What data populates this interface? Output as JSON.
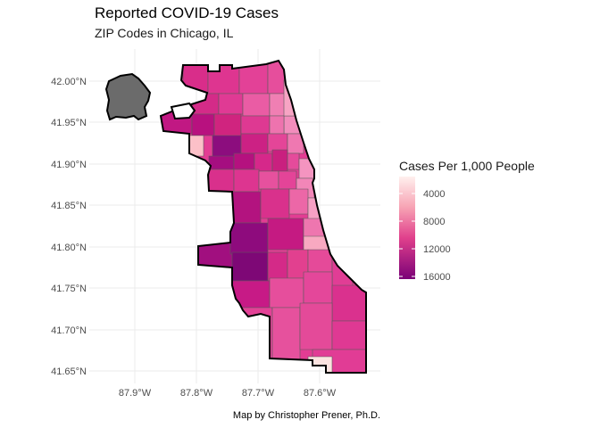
{
  "title": "Reported COVID-19 Cases",
  "subtitle": "ZIP Codes in Chicago, IL",
  "caption": "Map by Christopher Prener, Ph.D.",
  "legend": {
    "title": "Cases Per 1,000 People",
    "breaks": [
      "4000",
      "8000",
      "12000",
      "16000"
    ],
    "low_color": "#fff0ee",
    "high_color": "#7a0177",
    "na_color": "#6b6b6b"
  },
  "axes": {
    "lat_labels": [
      "42.00°N",
      "41.95°N",
      "41.90°N",
      "41.85°N",
      "41.80°N",
      "41.75°N",
      "41.70°N",
      "41.65°N"
    ],
    "lon_labels": [
      "87.9°W",
      "87.8°W",
      "87.7°W",
      "87.6°W"
    ]
  },
  "chart_data": {
    "type": "choropleth",
    "title": "Reported COVID-19 Cases",
    "subtitle": "ZIP Codes in Chicago, IL",
    "fill_variable": "Cases Per 1,000 People",
    "scale_range": [
      2000,
      17000
    ],
    "lat_range": [
      41.63,
      42.04
    ],
    "lon_range": [
      -87.96,
      -87.51
    ],
    "regions_approx_values": [
      10500,
      10000,
      9500,
      11000,
      9000,
      9500,
      8500,
      7500,
      7000,
      6500,
      13000,
      14500,
      16500,
      4000,
      11500,
      10000,
      9000,
      8000,
      15000,
      12000,
      10500,
      9000,
      13500,
      11000,
      9500,
      8000,
      7000,
      6000,
      14000,
      15500,
      12500,
      10000,
      9000,
      7500,
      5500,
      6000,
      16000,
      12000,
      10500,
      11000,
      9000,
      10000,
      9500,
      10500,
      11500,
      10000,
      8500,
      9500,
      3000,
      9000
    ]
  }
}
